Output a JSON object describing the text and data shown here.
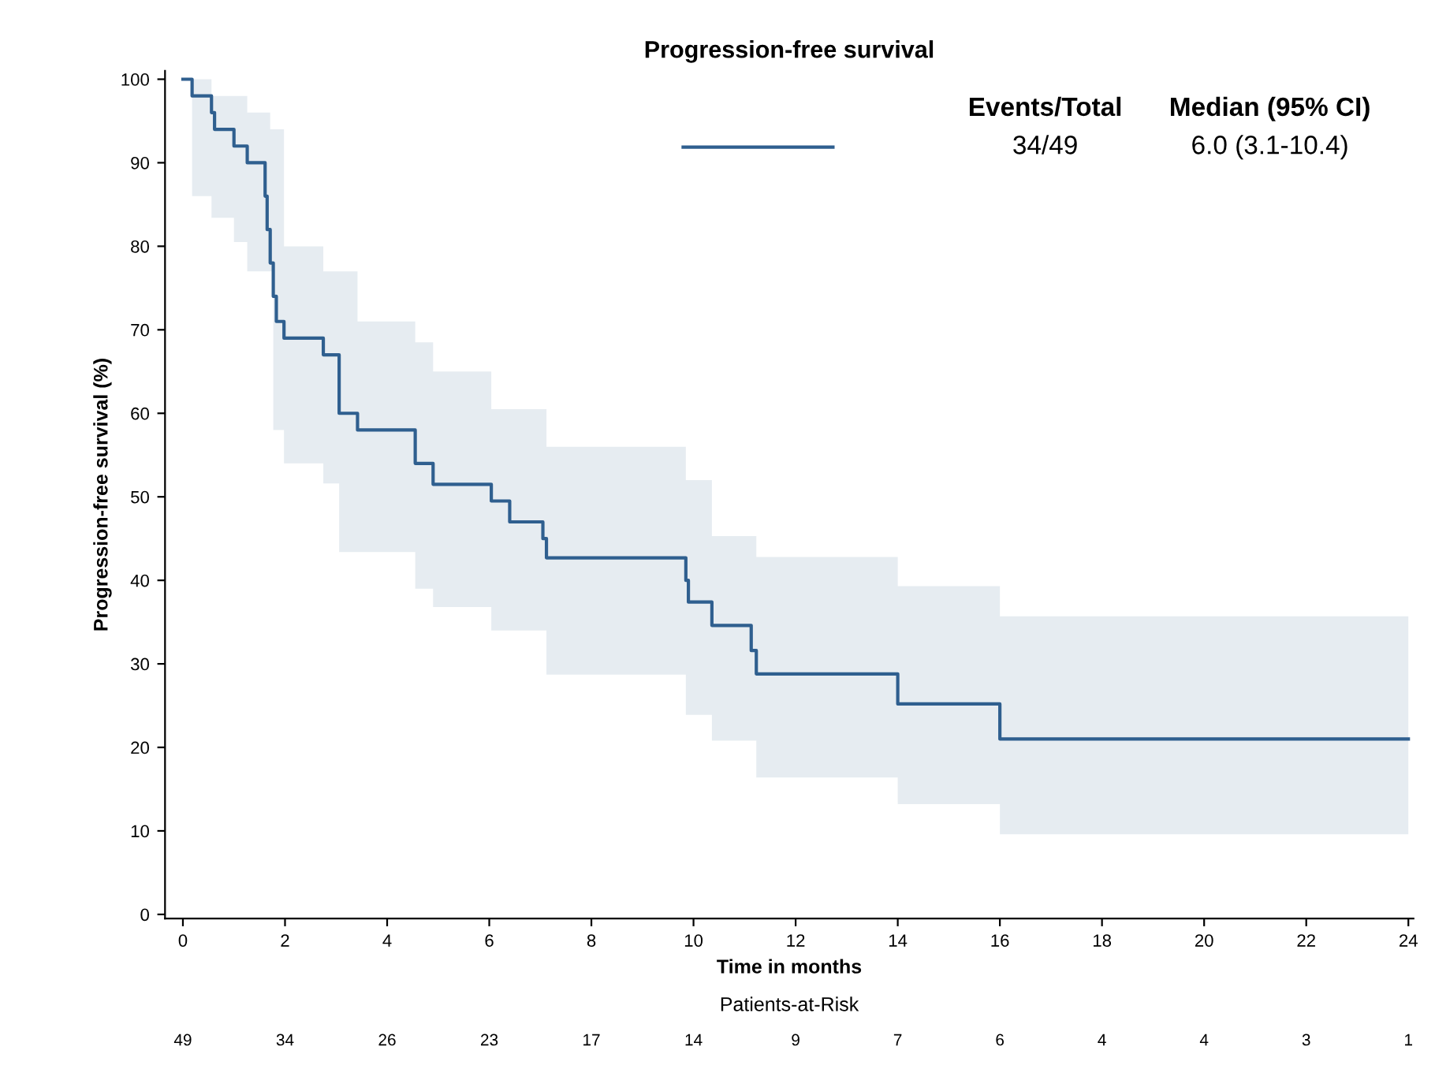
{
  "chart_data": {
    "type": "step",
    "title": "Progression-free survival",
    "xlabel": "Time in months",
    "ylabel": "Progression-free survival (%)",
    "xlim": [
      -0.35,
      24.1
    ],
    "ylim": [
      -0.5,
      101
    ],
    "xticks": [
      0,
      2,
      4,
      6,
      8,
      10,
      12,
      14,
      16,
      18,
      20,
      22,
      24
    ],
    "yticks": [
      0,
      10,
      20,
      30,
      40,
      50,
      60,
      70,
      80,
      90,
      100
    ],
    "grid": false,
    "series": [
      {
        "color": "#2f5f8f",
        "x": [
          0,
          0.18,
          0.56,
          0.62,
          1.0,
          1.26,
          1.61,
          1.65,
          1.71,
          1.77,
          1.83,
          1.98,
          2.75,
          3.06,
          3.42,
          4.55,
          4.9,
          6.04,
          6.4,
          7.05,
          7.12,
          9.85,
          9.9,
          10.36,
          11.13,
          11.23,
          14.0,
          16.0,
          24.0
        ],
        "values": [
          100,
          98,
          96,
          94,
          92,
          90,
          86,
          82,
          78,
          74,
          71,
          69,
          67,
          60,
          58,
          54,
          51.5,
          49.5,
          47,
          45,
          42.7,
          40,
          37.4,
          34.6,
          31.6,
          28.8,
          25.2,
          21,
          21
        ],
        "upper": [
          100,
          100,
          98,
          98,
          98,
          96,
          96,
          96,
          94,
          94,
          94,
          80,
          77,
          77,
          71,
          68.5,
          65,
          60.5,
          60.5,
          60.5,
          56,
          52,
          52,
          45.3,
          45.3,
          42.8,
          39.3,
          35.7,
          35.7
        ],
        "lower": [
          100,
          86,
          83.4,
          83.4,
          80.5,
          77,
          77,
          77,
          77,
          58,
          58,
          54,
          51.6,
          43.4,
          43.4,
          39,
          36.8,
          34,
          34,
          34,
          28.7,
          23.9,
          23.9,
          20.8,
          20.8,
          16.4,
          13.2,
          9.6,
          9.6
        ]
      }
    ],
    "annotations": [
      "Events/Total",
      "Median (95% CI)",
      "34/49",
      "6.0 (3.1-10.4)",
      "Patients-at-Risk",
      "49",
      "34",
      "26",
      "23",
      "17",
      "14",
      "9",
      "7",
      "6",
      "4",
      "4",
      "3",
      "1"
    ]
  }
}
